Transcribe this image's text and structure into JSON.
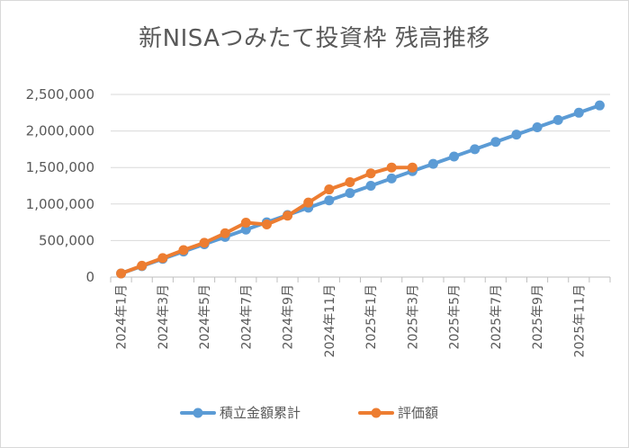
{
  "chart_data": {
    "type": "line",
    "title": "新NISAつみたて投資枠 残高推移",
    "xlabel": "",
    "ylabel": "",
    "ylim": [
      0,
      2500000
    ],
    "y_ticks": [
      0,
      500000,
      1000000,
      1500000,
      2000000,
      2500000
    ],
    "y_tick_labels": [
      "0",
      "500,000",
      "1,000,000",
      "1,500,000",
      "2,000,000",
      "2,500,000"
    ],
    "x_tick_labels": [
      "2024年1月",
      "2024年3月",
      "2024年5月",
      "2024年7月",
      "2024年9月",
      "2024年11月",
      "2025年1月",
      "2025年3月",
      "2025年5月",
      "2025年7月",
      "2025年9月",
      "2025年11月"
    ],
    "categories": [
      "2024年1月",
      "2024年2月",
      "2024年3月",
      "2024年4月",
      "2024年5月",
      "2024年6月",
      "2024年7月",
      "2024年8月",
      "2024年9月",
      "2024年10月",
      "2024年11月",
      "2024年12月",
      "2025年1月",
      "2025年2月",
      "2025年3月",
      "2025年4月",
      "2025年5月",
      "2025年6月",
      "2025年7月",
      "2025年8月",
      "2025年9月",
      "2025年10月",
      "2025年11月",
      "2025年12月"
    ],
    "grid": true,
    "legend_position": "bottom",
    "series": [
      {
        "name": "積立金額累計",
        "color": "#5b9bd5",
        "values": [
          50000,
          150000,
          250000,
          350000,
          450000,
          550000,
          650000,
          750000,
          850000,
          950000,
          1050000,
          1150000,
          1250000,
          1350000,
          1450000,
          1550000,
          1650000,
          1750000,
          1850000,
          1950000,
          2050000,
          2150000,
          2250000,
          2350000
        ]
      },
      {
        "name": "評価額",
        "color": "#ed7d31",
        "values": [
          50000,
          155000,
          260000,
          370000,
          470000,
          600000,
          745000,
          720000,
          840000,
          1020000,
          1200000,
          1300000,
          1420000,
          1500000,
          1500000,
          null,
          null,
          null,
          null,
          null,
          null,
          null,
          null,
          null
        ]
      }
    ]
  }
}
